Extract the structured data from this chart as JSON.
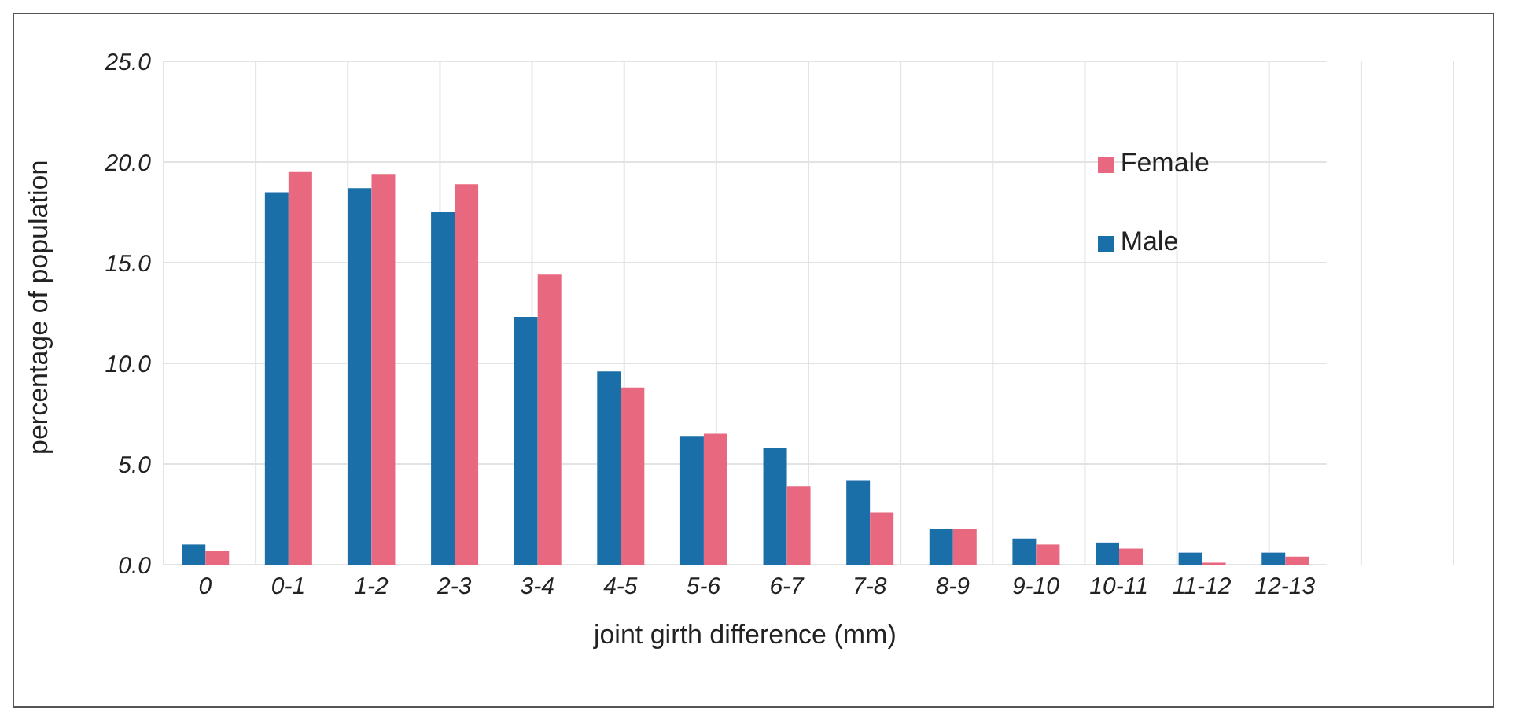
{
  "chart_data": {
    "type": "bar",
    "xlabel": "joint girth difference (mm)",
    "ylabel": "percentage of population",
    "categories": [
      "0",
      "0-1",
      "1-2",
      "2-3",
      "3-4",
      "4-5",
      "5-6",
      "6-7",
      "7-8",
      "8-9",
      "9-10",
      "10-11",
      "11-12",
      "12-13"
    ],
    "series": [
      {
        "name": "Male",
        "color": "#1a6fa8",
        "values": [
          1.0,
          18.5,
          18.7,
          17.5,
          12.3,
          9.6,
          6.4,
          5.8,
          4.2,
          1.8,
          1.3,
          1.1,
          0.6,
          0.6
        ]
      },
      {
        "name": "Female",
        "color": "#e8687f",
        "values": [
          0.7,
          19.5,
          19.4,
          18.9,
          14.4,
          8.8,
          6.5,
          3.9,
          2.6,
          1.8,
          1.0,
          0.8,
          0.1,
          0.4
        ]
      }
    ],
    "ylim": [
      0,
      25
    ],
    "yticks": [
      {
        "value": 0,
        "label": "0.0"
      },
      {
        "value": 5,
        "label": "5.0"
      },
      {
        "value": 10,
        "label": "10.0"
      },
      {
        "value": 15,
        "label": "15.0"
      },
      {
        "value": 20,
        "label": "20.0"
      },
      {
        "value": 25,
        "label": "25.0"
      }
    ],
    "grid": true,
    "legend": "top right"
  }
}
